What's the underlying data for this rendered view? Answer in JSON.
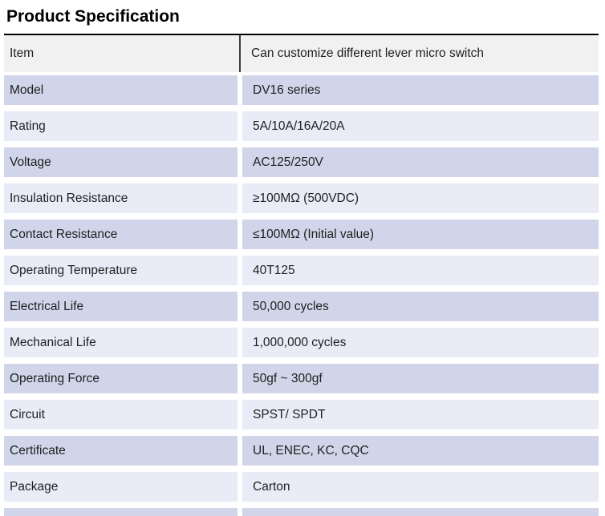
{
  "page": {
    "title": "Product Specification"
  },
  "table": {
    "header": {
      "label": "Item",
      "value": "Can customize different lever micro switch"
    },
    "rows": [
      {
        "label": "Model",
        "value": "DV16 series"
      },
      {
        "label": "Rating",
        "value": "5A/10A/16A/20A"
      },
      {
        "label": "Voltage",
        "value": "AC125/250V"
      },
      {
        "label": "Insulation Resistance",
        "value": "≥100MΩ (500VDC)"
      },
      {
        "label": "Contact Resistance",
        "value": "≤100MΩ (Initial value)"
      },
      {
        "label": "Operating Temperature",
        "value": "40T125"
      },
      {
        "label": "Electrical Life",
        "value": "50,000 cycles"
      },
      {
        "label": "Mechanical Life",
        "value": "1,000,000 cycles"
      },
      {
        "label": "Operating Force",
        "value": "50gf ~ 300gf"
      },
      {
        "label": "Circuit",
        "value": "SPST/ SPDT"
      },
      {
        "label": "Certificate",
        "value": "UL, ENEC, KC, CQC"
      },
      {
        "label": "Package",
        "value": "Carton"
      }
    ],
    "colors": {
      "header_bg": "#f1f1f2",
      "row_alt_dark": "#d0d5e9",
      "row_alt_light": "#e9ebf7",
      "top_border": "#000000",
      "header_divider": "#3c3c3c",
      "text": "#1f1f1f"
    }
  }
}
